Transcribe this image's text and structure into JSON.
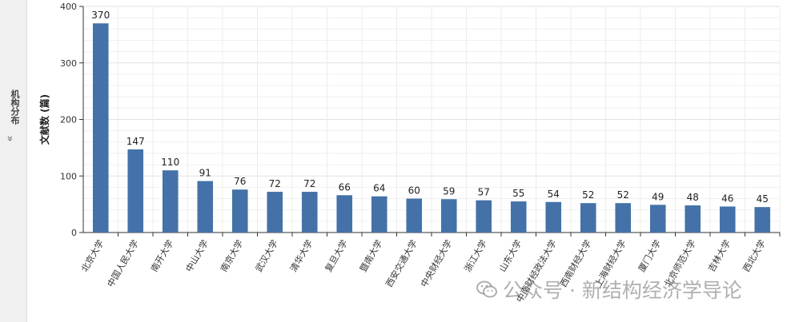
{
  "sidebar": {
    "label": "机构分布",
    "arrow": "»"
  },
  "watermark": "公众号 · 新结构经济学导论",
  "chart_data": {
    "type": "bar",
    "title": "",
    "xlabel": "",
    "ylabel": "文献数 (篇)",
    "ylim": [
      0,
      400
    ],
    "yticks": [
      0,
      100,
      200,
      300,
      400
    ],
    "grid": true,
    "bar_color": "#4472a8",
    "categories": [
      "北京大学",
      "中国人民大学",
      "南开大学",
      "中山大学",
      "南京大学",
      "武汉大学",
      "清华大学",
      "复旦大学",
      "暨南大学",
      "西安交通大学",
      "中央财经大学",
      "浙江大学",
      "山东大学",
      "中南财经政法大学",
      "西南财经大学",
      "上海财经大学",
      "厦门大学",
      "北京师范大学",
      "吉林大学",
      "西北大学"
    ],
    "values": [
      370,
      147,
      110,
      91,
      76,
      72,
      72,
      66,
      64,
      60,
      59,
      57,
      55,
      54,
      52,
      52,
      49,
      48,
      46,
      45
    ]
  }
}
